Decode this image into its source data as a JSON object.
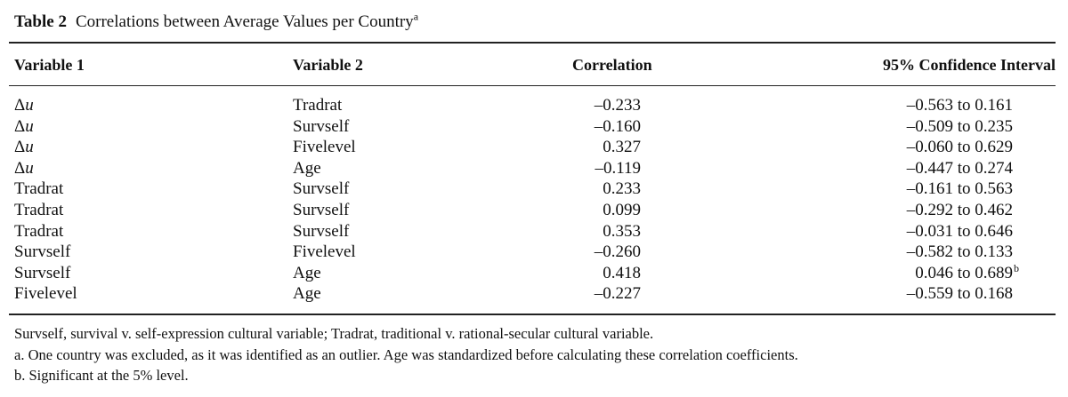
{
  "caption": {
    "label": "Table 2",
    "title": "Correlations between Average Values per Country",
    "note_mark": "a"
  },
  "headers": {
    "var1": "Variable 1",
    "var2": "Variable 2",
    "corr": "Correlation",
    "ci": "95% Confidence Interval"
  },
  "rows": [
    {
      "v1": "Δu",
      "v2": "Tradrat",
      "corr": "–0.233",
      "ci": "–0.563 to 0.161",
      "note": ""
    },
    {
      "v1": "Δu",
      "v2": "Survself",
      "corr": "–0.160",
      "ci": "–0.509 to 0.235",
      "note": ""
    },
    {
      "v1": "Δu",
      "v2": "Fivelevel",
      "corr": "0.327",
      "ci": "–0.060 to 0.629",
      "note": ""
    },
    {
      "v1": "Δu",
      "v2": "Age",
      "corr": "–0.119",
      "ci": "–0.447 to 0.274",
      "note": ""
    },
    {
      "v1": "Tradrat",
      "v2": "Survself",
      "corr": "0.233",
      "ci": "–0.161 to 0.563",
      "note": ""
    },
    {
      "v1": "Tradrat",
      "v2": "Survself",
      "corr": "0.099",
      "ci": "–0.292 to 0.462",
      "note": ""
    },
    {
      "v1": "Tradrat",
      "v2": "Survself",
      "corr": "0.353",
      "ci": "–0.031 to 0.646",
      "note": ""
    },
    {
      "v1": "Survself",
      "v2": "Fivelevel",
      "corr": "–0.260",
      "ci": "–0.582 to 0.133",
      "note": ""
    },
    {
      "v1": "Survself",
      "v2": "Age",
      "corr": "0.418",
      "ci": "0.046 to 0.689",
      "note": "b"
    },
    {
      "v1": "Fivelevel",
      "v2": "Age",
      "corr": "–0.227",
      "ci": "–0.559 to 0.168",
      "note": ""
    }
  ],
  "footnotes": [
    "Survself, survival v. self-expression cultural variable; Tradrat, traditional v. rational-secular cultural variable.",
    "a. One country was excluded, as it was identified as an outlier. Age was standardized before calculating these correlation coefficients.",
    "b. Significant at the 5% level."
  ]
}
